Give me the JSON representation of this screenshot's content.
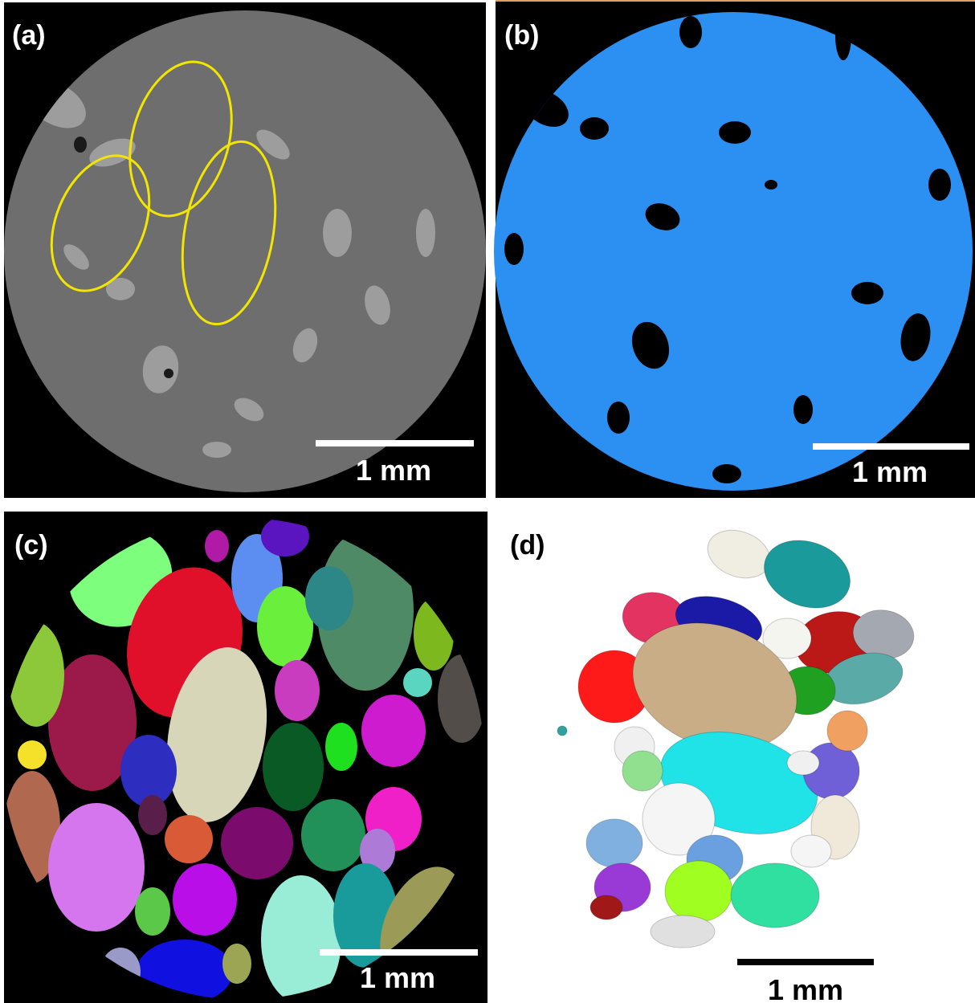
{
  "panels": [
    {
      "label": "(a)",
      "scale_bar": "1 mm"
    },
    {
      "label": "(b)",
      "scale_bar": "1 mm"
    },
    {
      "label": "(c)",
      "scale_bar": "1 mm"
    },
    {
      "label": "(d)",
      "scale_bar": "1 mm"
    }
  ]
}
